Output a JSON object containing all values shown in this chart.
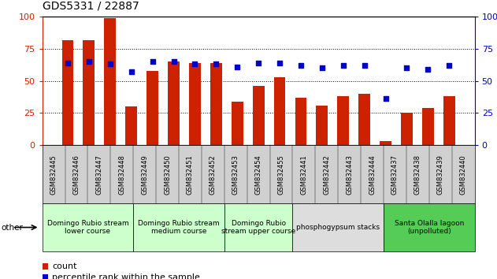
{
  "title": "GDS5331 / 22887",
  "samples": [
    "GSM832445",
    "GSM832446",
    "GSM832447",
    "GSM832448",
    "GSM832449",
    "GSM832450",
    "GSM832451",
    "GSM832452",
    "GSM832453",
    "GSM832454",
    "GSM832455",
    "GSM832441",
    "GSM832442",
    "GSM832443",
    "GSM832444",
    "GSM832437",
    "GSM832438",
    "GSM832439",
    "GSM832440"
  ],
  "counts": [
    82,
    82,
    99,
    30,
    58,
    65,
    64,
    64,
    34,
    46,
    53,
    37,
    31,
    38,
    40,
    3,
    25,
    29,
    38
  ],
  "percentiles": [
    64,
    65,
    63,
    57,
    65,
    65,
    63,
    63,
    61,
    64,
    64,
    62,
    60,
    62,
    62,
    36,
    60,
    59,
    62
  ],
  "bar_color": "#cc2200",
  "marker_color": "#0000cc",
  "ylim": [
    0,
    100
  ],
  "yticks": [
    0,
    25,
    50,
    75,
    100
  ],
  "groups": [
    {
      "label": "Domingo Rubio stream\nlower course",
      "start": 0,
      "end": 3,
      "color": "#ccffcc"
    },
    {
      "label": "Domingo Rubio stream\nmedium course",
      "start": 4,
      "end": 7,
      "color": "#ccffcc"
    },
    {
      "label": "Domingo Rubio\nstream upper course",
      "start": 8,
      "end": 10,
      "color": "#ccffcc"
    },
    {
      "label": "phosphogypsum stacks",
      "start": 11,
      "end": 14,
      "color": "#dddddd"
    },
    {
      "label": "Santa Olalla lagoon\n(unpolluted)",
      "start": 15,
      "end": 18,
      "color": "#55cc55"
    }
  ],
  "legend_count_label": "count",
  "legend_pct_label": "percentile rank within the sample",
  "other_label": "other",
  "bar_width": 0.55,
  "figsize": [
    6.31,
    3.54
  ],
  "dpi": 100
}
